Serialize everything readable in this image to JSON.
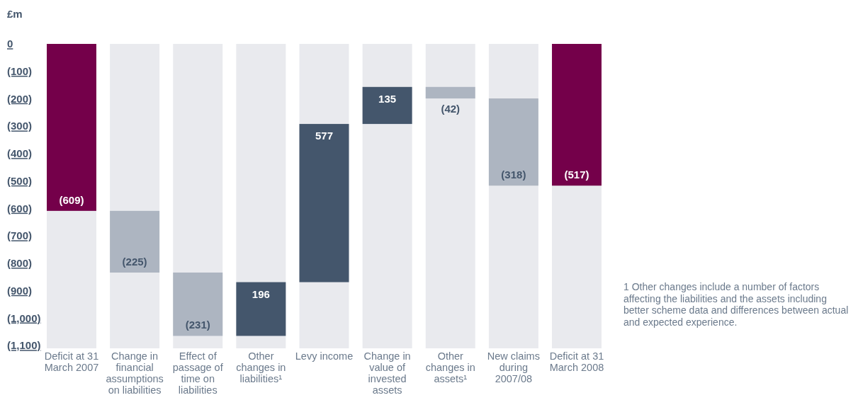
{
  "chart_data": {
    "type": "bar",
    "ylabel": "£m",
    "categories": [
      "Deficit at 31 March 2007",
      "Change in financial assumptions on liabilities",
      "Effect of passage of time on liabilities",
      "Other changes in liabilities¹",
      "Levy income",
      "Change in value of invested assets",
      "Other changes in assets¹",
      "New claims during 2007/08",
      "Deficit at 31 March 2008"
    ],
    "values": [
      -609,
      -225,
      -231,
      196,
      577,
      135,
      -42,
      -318,
      -517
    ],
    "base": [
      0,
      -609,
      -834,
      -1065,
      -869,
      -292,
      -157,
      -199,
      0
    ],
    "colors": [
      "#74004a",
      "#adb5c1",
      "#adb5c1",
      "#44566c",
      "#44566c",
      "#44566c",
      "#adb5c1",
      "#adb5c1",
      "#74004a"
    ],
    "value_labels": [
      "(609)",
      "(225)",
      "(231)",
      "196",
      "577",
      "135",
      "(42)",
      "(318)",
      "(517)"
    ],
    "ylim": [
      -1100,
      0
    ],
    "yticks": [
      0,
      {
        "value": -100,
        "label": "(100)"
      },
      {
        "value": -200,
        "label": "(200)"
      },
      {
        "value": -300,
        "label": "(300)"
      },
      {
        "value": -400,
        "label": "(400)"
      },
      {
        "value": -500,
        "label": "(500)"
      },
      {
        "value": -600,
        "label": "(600)"
      },
      {
        "value": -700,
        "label": "(700)"
      },
      {
        "value": -800,
        "label": "(800)"
      },
      {
        "value": -900,
        "label": "(900)"
      },
      {
        "value": -1000,
        "label": "(1,000)"
      },
      {
        "value": -1100,
        "label": "(1,100)"
      }
    ],
    "grid": false,
    "annotations": [
      "1 Other changes include a number of factors affecting the liabilities and the assets including better scheme data and differences between actual and expected experience."
    ]
  }
}
